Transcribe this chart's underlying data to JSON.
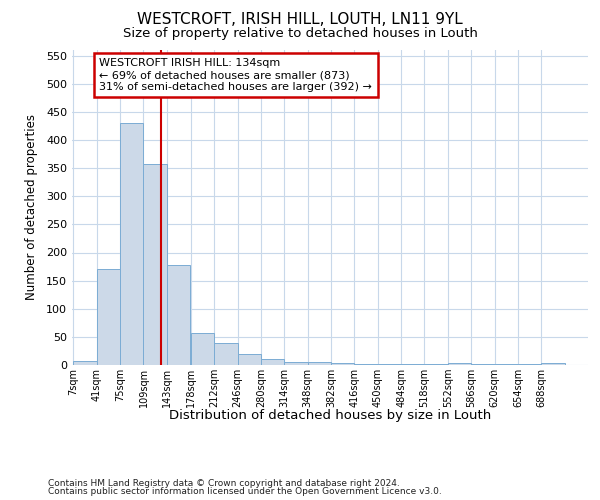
{
  "title": "WESTCROFT, IRISH HILL, LOUTH, LN11 9YL",
  "subtitle": "Size of property relative to detached houses in Louth",
  "xlabel": "Distribution of detached houses by size in Louth",
  "ylabel": "Number of detached properties",
  "footer1": "Contains HM Land Registry data © Crown copyright and database right 2024.",
  "footer2": "Contains public sector information licensed under the Open Government Licence v3.0.",
  "annotation_line1": "WESTCROFT IRISH HILL: 134sqm",
  "annotation_line2": "← 69% of detached houses are smaller (873)",
  "annotation_line3": "31% of semi-detached houses are larger (392) →",
  "property_size": 134,
  "bar_color": "#ccd9e8",
  "bar_edge_color": "#7bacd4",
  "vline_color": "#cc0000",
  "annotation_box_color": "#cc0000",
  "bg_color": "#ffffff",
  "plot_bg_color": "#ffffff",
  "grid_color": "#c8d8ea",
  "categories": [
    "7sqm",
    "41sqm",
    "75sqm",
    "109sqm",
    "143sqm",
    "178sqm",
    "212sqm",
    "246sqm",
    "280sqm",
    "314sqm",
    "348sqm",
    "382sqm",
    "416sqm",
    "450sqm",
    "484sqm",
    "518sqm",
    "552sqm",
    "586sqm",
    "620sqm",
    "654sqm",
    "688sqm"
  ],
  "values": [
    8,
    170,
    430,
    357,
    178,
    57,
    40,
    20,
    10,
    6,
    5,
    4,
    2,
    1,
    1,
    1,
    4,
    1,
    1,
    1,
    4
  ],
  "bin_edges": [
    7,
    41,
    75,
    109,
    143,
    178,
    212,
    246,
    280,
    314,
    348,
    382,
    416,
    450,
    484,
    518,
    552,
    586,
    620,
    654,
    688,
    722
  ],
  "ylim": [
    0,
    560
  ],
  "yticks": [
    0,
    50,
    100,
    150,
    200,
    250,
    300,
    350,
    400,
    450,
    500,
    550
  ]
}
